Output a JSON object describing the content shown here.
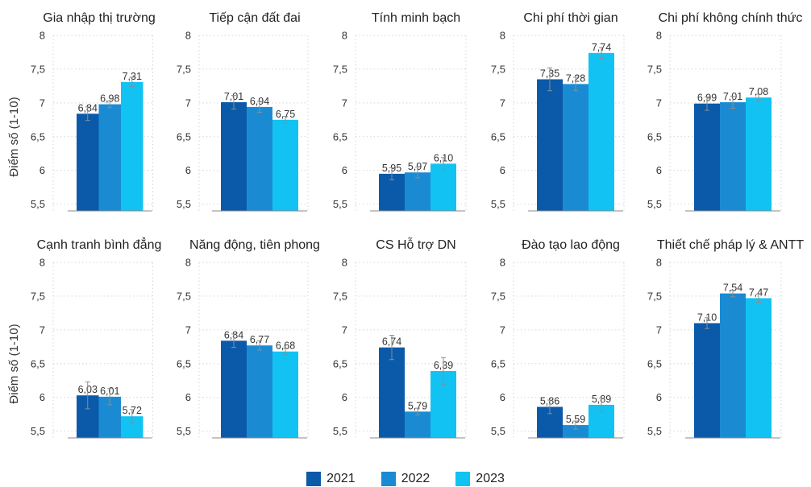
{
  "legend": {
    "position": "bottom-center",
    "items": [
      {
        "label": "2021",
        "color": "#0a5aa9"
      },
      {
        "label": "2022",
        "color": "#1a8bd3"
      },
      {
        "label": "2023",
        "color": "#12c2f2"
      }
    ]
  },
  "chart_data": [
    {
      "type": "bar",
      "title": "Gia nhập thị trường",
      "ylabel": "Điểm số (1-10)",
      "xlabel": "",
      "ylim": [
        5.4,
        8
      ],
      "yticks": [
        8,
        7.5,
        7,
        6.5,
        6,
        5.5
      ],
      "ytick_labels": [
        "8",
        "7,5",
        "7",
        "6,5",
        "6",
        "5,5"
      ],
      "grid": true,
      "series": [
        {
          "name": "2021",
          "value": 6.84,
          "label": "6,84",
          "error": 0.1
        },
        {
          "name": "2022",
          "value": 6.98,
          "label": "6,98",
          "error": 0.05
        },
        {
          "name": "2023",
          "value": 7.31,
          "label": "7,31",
          "error": 0.07
        }
      ]
    },
    {
      "type": "bar",
      "title": "Tiếp cận đất đai",
      "ylabel": "",
      "xlabel": "",
      "ylim": [
        5.4,
        8
      ],
      "yticks": [
        8,
        7.5,
        7,
        6.5,
        6,
        5.5
      ],
      "ytick_labels": [
        "8",
        "7,5",
        "7",
        "6,5",
        "6",
        "5,5"
      ],
      "grid": true,
      "series": [
        {
          "name": "2021",
          "value": 7.01,
          "label": "7,01",
          "error": 0.1
        },
        {
          "name": "2022",
          "value": 6.94,
          "label": "6,94",
          "error": 0.08
        },
        {
          "name": "2023",
          "value": 6.75,
          "label": "6,75",
          "error": 0.05
        }
      ]
    },
    {
      "type": "bar",
      "title": "Tính minh bạch",
      "ylabel": "",
      "xlabel": "",
      "ylim": [
        5.4,
        8
      ],
      "yticks": [
        8,
        7.5,
        7,
        6.5,
        6,
        5.5
      ],
      "ytick_labels": [
        "8",
        "7,5",
        "7",
        "6,5",
        "6",
        "5,5"
      ],
      "grid": true,
      "series": [
        {
          "name": "2021",
          "value": 5.95,
          "label": "5,95",
          "error": 0.09
        },
        {
          "name": "2022",
          "value": 5.97,
          "label": "5,97",
          "error": 0.08
        },
        {
          "name": "2023",
          "value": 6.1,
          "label": "6,10",
          "error": 0.09
        }
      ]
    },
    {
      "type": "bar",
      "title": "Chi phí thời gian",
      "ylabel": "",
      "xlabel": "",
      "ylim": [
        5.4,
        8
      ],
      "yticks": [
        8,
        7.5,
        7,
        6.5,
        6,
        5.5
      ],
      "ytick_labels": [
        "8",
        "7,5",
        "7",
        "6,5",
        "6",
        "5,5"
      ],
      "grid": true,
      "series": [
        {
          "name": "2021",
          "value": 7.35,
          "label": "7,35",
          "error": 0.17
        },
        {
          "name": "2022",
          "value": 7.28,
          "label": "7,28",
          "error": 0.1
        },
        {
          "name": "2023",
          "value": 7.74,
          "label": "7,74",
          "error": 0.08
        }
      ]
    },
    {
      "type": "bar",
      "title": "Chi phí không chính thức",
      "ylabel": "",
      "xlabel": "",
      "ylim": [
        5.4,
        8
      ],
      "yticks": [
        8,
        7.5,
        7,
        6.5,
        6,
        5.5
      ],
      "ytick_labels": [
        "8",
        "7,5",
        "7",
        "6,5",
        "6",
        "5,5"
      ],
      "grid": true,
      "series": [
        {
          "name": "2021",
          "value": 6.99,
          "label": "6,99",
          "error": 0.1
        },
        {
          "name": "2022",
          "value": 7.01,
          "label": "7,01",
          "error": 0.09
        },
        {
          "name": "2023",
          "value": 7.08,
          "label": "7,08",
          "error": 0.05
        }
      ]
    },
    {
      "type": "bar",
      "title": "Cạnh tranh bình đẳng",
      "ylabel": "Điểm số (1-10)",
      "xlabel": "",
      "ylim": [
        5.4,
        8
      ],
      "yticks": [
        8,
        7.5,
        7,
        6.5,
        6,
        5.5
      ],
      "ytick_labels": [
        "8",
        "7,5",
        "7",
        "6,5",
        "6",
        "5,5"
      ],
      "grid": true,
      "series": [
        {
          "name": "2021",
          "value": 6.03,
          "label": "6,03",
          "error": 0.2
        },
        {
          "name": "2022",
          "value": 6.01,
          "label": "6,01",
          "error": 0.12
        },
        {
          "name": "2023",
          "value": 5.72,
          "label": "5,72",
          "error": 0.1
        }
      ]
    },
    {
      "type": "bar",
      "title": "Năng động, tiên phong",
      "ylabel": "",
      "xlabel": "",
      "ylim": [
        5.4,
        8
      ],
      "yticks": [
        8,
        7.5,
        7,
        6.5,
        6,
        5.5
      ],
      "ytick_labels": [
        "8",
        "7,5",
        "7",
        "6,5",
        "6",
        "5,5"
      ],
      "grid": true,
      "series": [
        {
          "name": "2021",
          "value": 6.84,
          "label": "6,84",
          "error": 0.1
        },
        {
          "name": "2022",
          "value": 6.77,
          "label": "6,77",
          "error": 0.07
        },
        {
          "name": "2023",
          "value": 6.68,
          "label": "6,68",
          "error": 0.05
        }
      ]
    },
    {
      "type": "bar",
      "title": "CS Hỗ trợ DN",
      "ylabel": "",
      "xlabel": "",
      "ylim": [
        5.4,
        8
      ],
      "yticks": [
        8,
        7.5,
        7,
        6.5,
        6,
        5.5
      ],
      "ytick_labels": [
        "8",
        "7,5",
        "7",
        "6,5",
        "6",
        "5,5"
      ],
      "grid": true,
      "series": [
        {
          "name": "2021",
          "value": 6.74,
          "label": "6,74",
          "error": 0.18
        },
        {
          "name": "2022",
          "value": 5.79,
          "label": "5,79",
          "error": 0.05
        },
        {
          "name": "2023",
          "value": 6.39,
          "label": "6,39",
          "error": 0.2
        }
      ]
    },
    {
      "type": "bar",
      "title": "Đào tạo lao động",
      "ylabel": "",
      "xlabel": "",
      "ylim": [
        5.4,
        8
      ],
      "yticks": [
        8,
        7.5,
        7,
        6.5,
        6,
        5.5
      ],
      "ytick_labels": [
        "8",
        "7,5",
        "7",
        "6,5",
        "6",
        "5,5"
      ],
      "grid": true,
      "series": [
        {
          "name": "2021",
          "value": 5.86,
          "label": "5,86",
          "error": 0.1
        },
        {
          "name": "2022",
          "value": 5.59,
          "label": "5,59",
          "error": 0.06
        },
        {
          "name": "2023",
          "value": 5.89,
          "label": "5,89",
          "error": 0.1
        }
      ]
    },
    {
      "type": "bar",
      "title": "Thiết chế pháp lý & ANTT",
      "ylabel": "",
      "xlabel": "",
      "ylim": [
        5.4,
        8
      ],
      "yticks": [
        8,
        7.5,
        7,
        6.5,
        6,
        5.5
      ],
      "ytick_labels": [
        "8",
        "7,5",
        "7",
        "6,5",
        "6",
        "5,5"
      ],
      "grid": true,
      "series": [
        {
          "name": "2021",
          "value": 7.1,
          "label": "7,10",
          "error": 0.08
        },
        {
          "name": "2022",
          "value": 7.54,
          "label": "7,54",
          "error": 0.05
        },
        {
          "name": "2023",
          "value": 7.47,
          "label": "7,47",
          "error": 0.06
        }
      ]
    }
  ]
}
